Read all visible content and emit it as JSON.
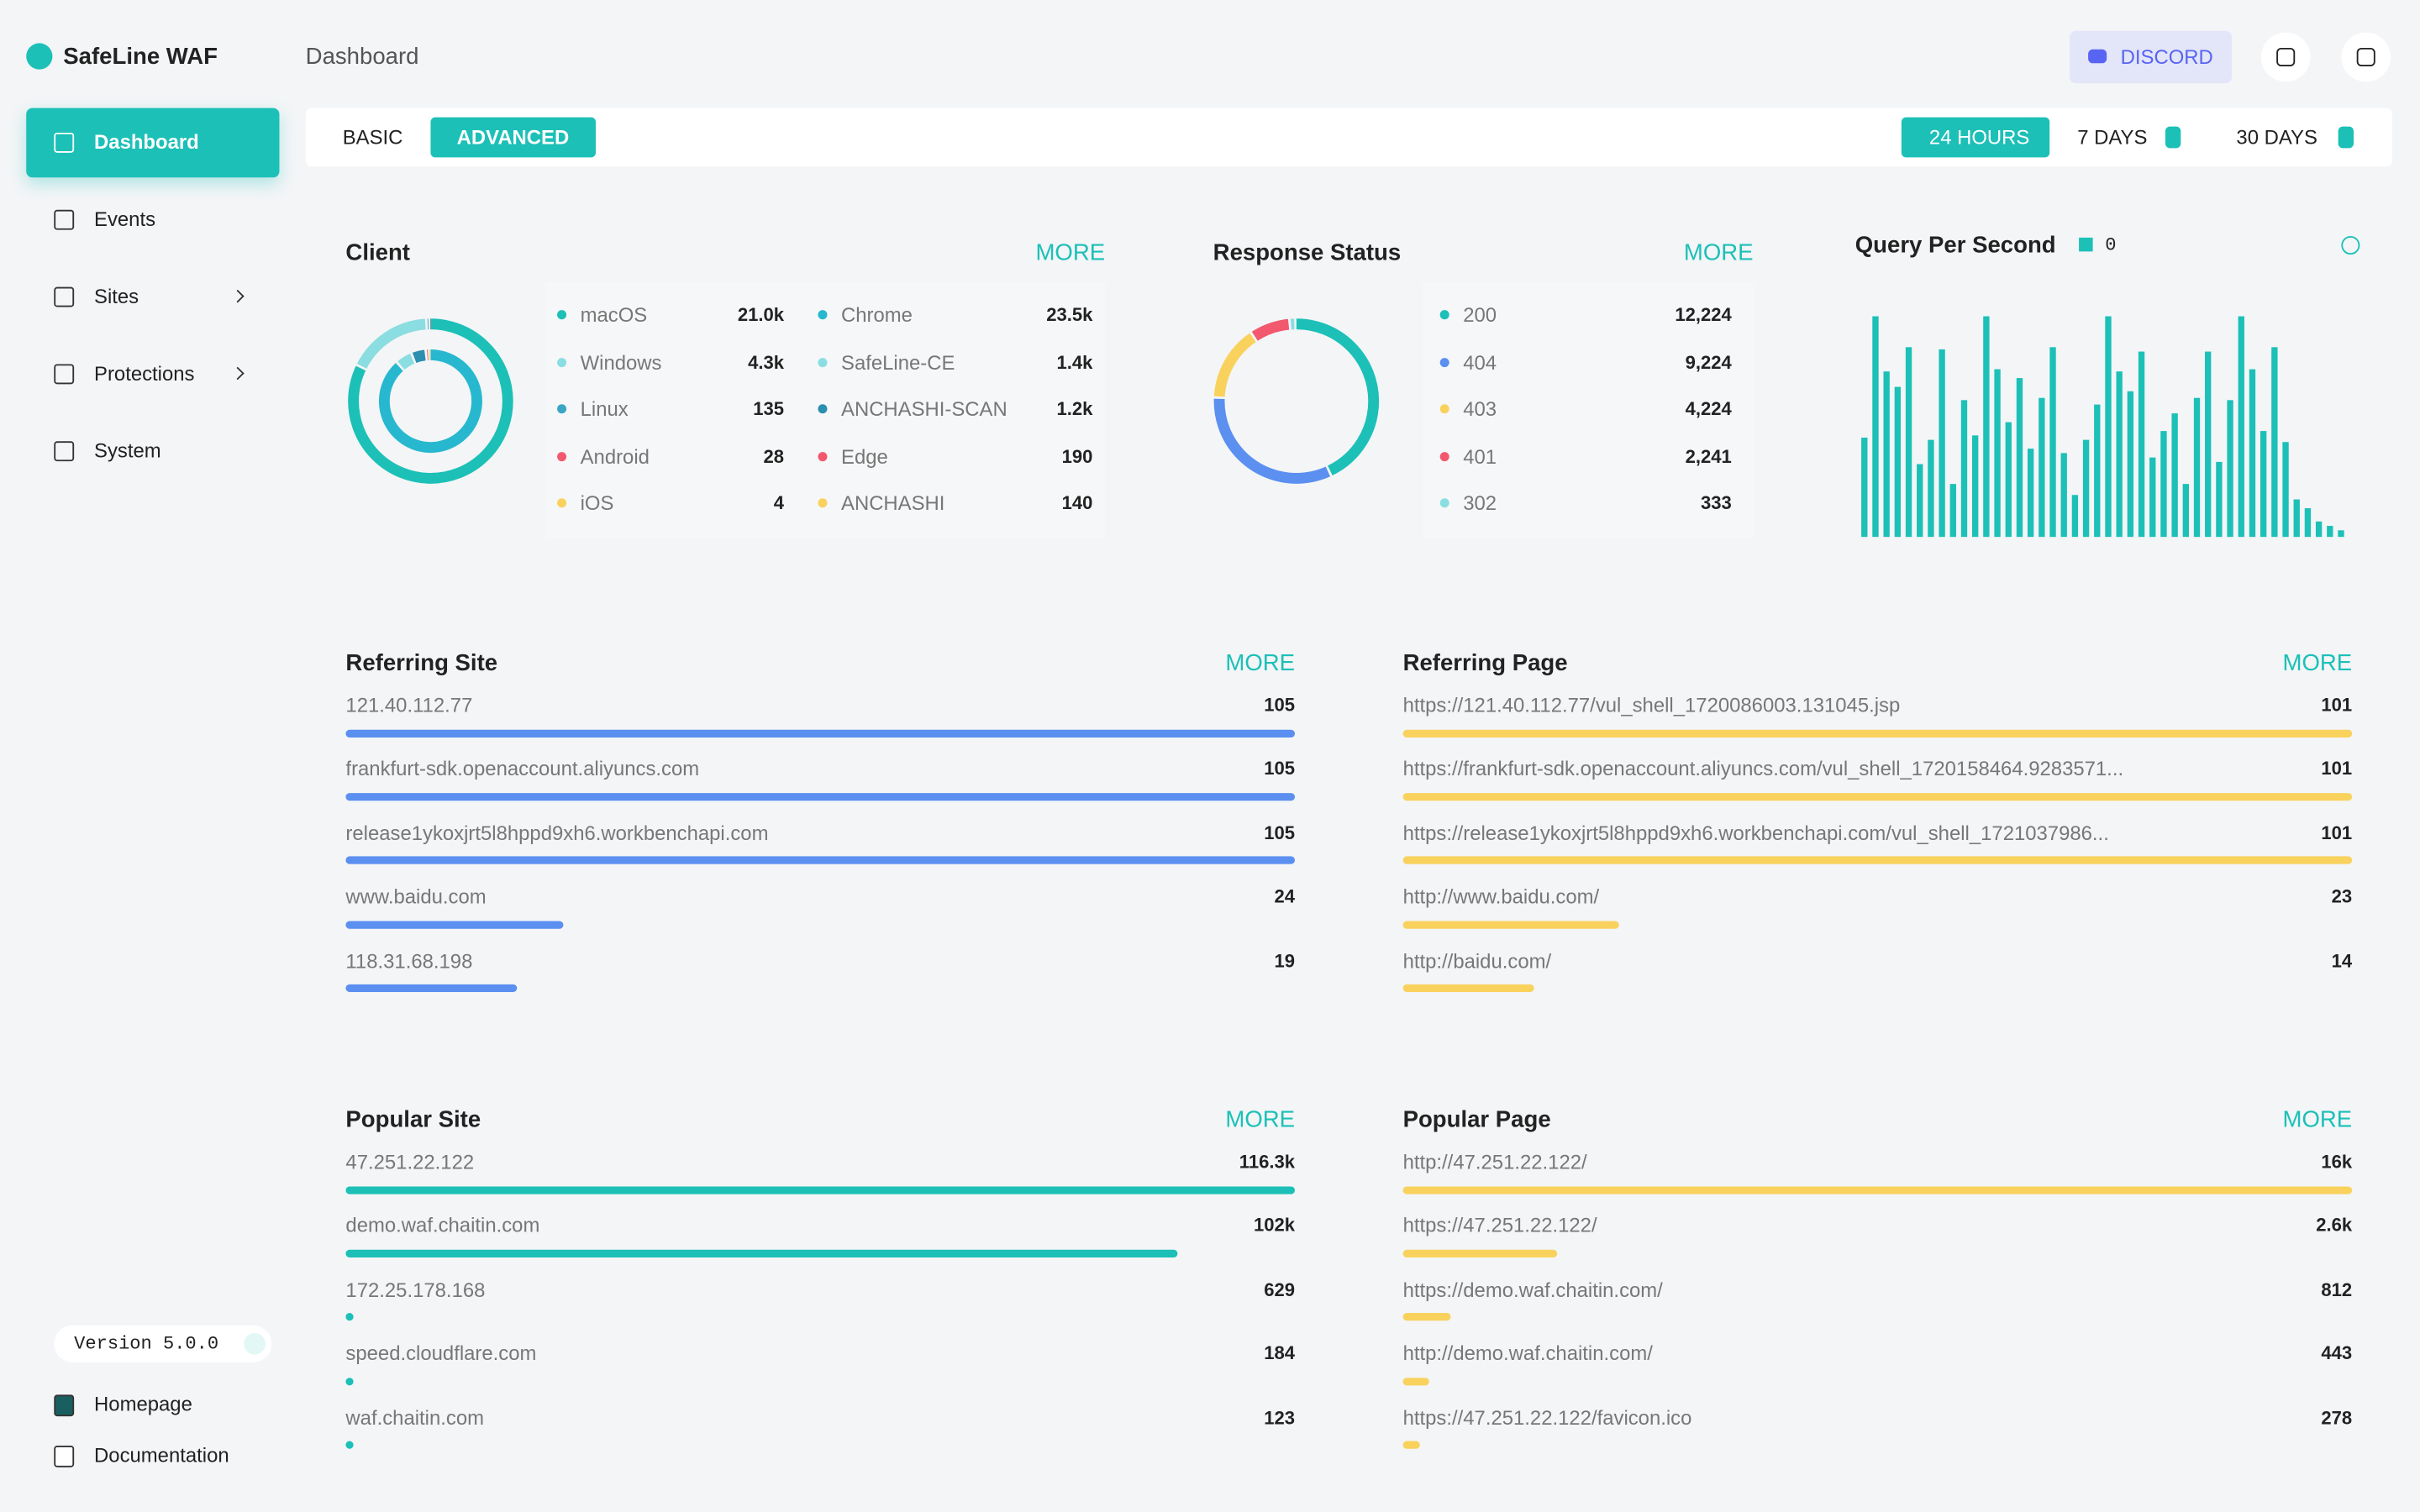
{
  "sidebar": {
    "brand": "SafeLine WAF",
    "nav": [
      "Dashboard",
      "Events",
      "Sites",
      "Protections",
      "System"
    ],
    "version": "Version 5.0.0",
    "links": [
      "Homepage",
      "Documentation"
    ]
  },
  "header": {
    "title": "Dashboard",
    "discord": "DISCORD"
  },
  "tabs": {
    "modes": [
      "BASIC",
      "ADVANCED"
    ],
    "ranges": [
      "24 HOURS",
      "7 DAYS",
      "30 DAYS"
    ]
  },
  "client": {
    "title": "Client",
    "more": "MORE",
    "os": [
      {
        "name": "macOS",
        "value": 21000,
        "label": "21.0k",
        "color": "#1cc0b7"
      },
      {
        "name": "Windows",
        "value": 4300,
        "label": "4.3k",
        "color": "#8adde0"
      },
      {
        "name": "Linux",
        "value": 135,
        "color": "#3aa6c4"
      },
      {
        "name": "Android",
        "value": 28,
        "color": "#f2596e"
      },
      {
        "name": "iOS",
        "value": 4,
        "color": "#f9d25d"
      }
    ],
    "browser": [
      {
        "name": "Chrome",
        "value": 23500,
        "label": "23.5k",
        "color": "#27b8cf"
      },
      {
        "name": "SafeLine-CE",
        "value": 1400,
        "label": "1.4k",
        "color": "#8adde0"
      },
      {
        "name": "ANCHASHI-SCAN",
        "value": 1200,
        "label": "1.2k",
        "color": "#2a8fb0"
      },
      {
        "name": "Edge",
        "value": 190,
        "color": "#f2596e"
      },
      {
        "name": "ANCHASHI",
        "value": 140,
        "color": "#f9d25d"
      }
    ]
  },
  "response_status": {
    "title": "Response Status",
    "more": "MORE",
    "items": [
      {
        "name": "200",
        "value": 12224,
        "label": "12,224",
        "color": "#1cc0b7"
      },
      {
        "name": "404",
        "value": 9224,
        "label": "9,224",
        "color": "#5b8ff0"
      },
      {
        "name": "403",
        "value": 4224,
        "label": "4,224",
        "color": "#f9d25d"
      },
      {
        "name": "401",
        "value": 2241,
        "label": "2,241",
        "color": "#f2596e"
      },
      {
        "name": "302",
        "value": 333,
        "color": "#8adde0"
      }
    ]
  },
  "qps": {
    "title": "Query Per Second",
    "current": 0,
    "color": "#1cc0b7",
    "values": [
      45,
      100,
      75,
      68,
      86,
      33,
      44,
      85,
      24,
      62,
      46,
      100,
      76,
      52,
      72,
      40,
      63,
      86,
      38,
      19,
      44,
      60,
      100,
      75,
      66,
      84,
      36,
      48,
      56,
      24,
      63,
      84,
      34,
      62,
      100,
      76,
      48,
      86,
      43,
      17,
      13,
      7,
      5,
      3
    ]
  },
  "referring_site": {
    "title": "Referring Site",
    "more": "MORE",
    "color": "#5b8ff0",
    "items": [
      {
        "name": "121.40.112.77",
        "value": 105
      },
      {
        "name": "frankfurt-sdk.openaccount.aliyuncs.com",
        "value": 105
      },
      {
        "name": "release1ykoxjrt5l8hppd9xh6.workbenchapi.com",
        "value": 105
      },
      {
        "name": "www.baidu.com",
        "value": 24
      },
      {
        "name": "118.31.68.198",
        "value": 19
      }
    ]
  },
  "referring_page": {
    "title": "Referring Page",
    "more": "MORE",
    "color": "#f9d25d",
    "items": [
      {
        "name": "https://121.40.112.77/vul_shell_1720086003.131045.jsp",
        "value": 101
      },
      {
        "name": "https://frankfurt-sdk.openaccount.aliyuncs.com/vul_shell_1720158464.9283571...",
        "value": 101
      },
      {
        "name": "https://release1ykoxjrt5l8hppd9xh6.workbenchapi.com/vul_shell_1721037986...",
        "value": 101
      },
      {
        "name": "http://www.baidu.com/",
        "value": 23
      },
      {
        "name": "http://baidu.com/",
        "value": 14
      }
    ]
  },
  "popular_site": {
    "title": "Popular Site",
    "more": "MORE",
    "color": "#1cc0b7",
    "items": [
      {
        "name": "47.251.22.122",
        "value": 116300,
        "label": "116.3k"
      },
      {
        "name": "demo.waf.chaitin.com",
        "value": 102000,
        "label": "102k"
      },
      {
        "name": "172.25.178.168",
        "value": 629
      },
      {
        "name": "speed.cloudflare.com",
        "value": 184
      },
      {
        "name": "waf.chaitin.com",
        "value": 123
      }
    ]
  },
  "popular_page": {
    "title": "Popular Page",
    "more": "MORE",
    "color": "#f9d25d",
    "items": [
      {
        "name": "http://47.251.22.122/",
        "value": 16000,
        "label": "16k"
      },
      {
        "name": "https://47.251.22.122/",
        "value": 2600,
        "label": "2.6k"
      },
      {
        "name": "https://demo.waf.chaitin.com/",
        "value": 812
      },
      {
        "name": "http://demo.waf.chaitin.com/",
        "value": 443
      },
      {
        "name": "https://47.251.22.122/favicon.ico",
        "value": 278
      }
    ]
  }
}
